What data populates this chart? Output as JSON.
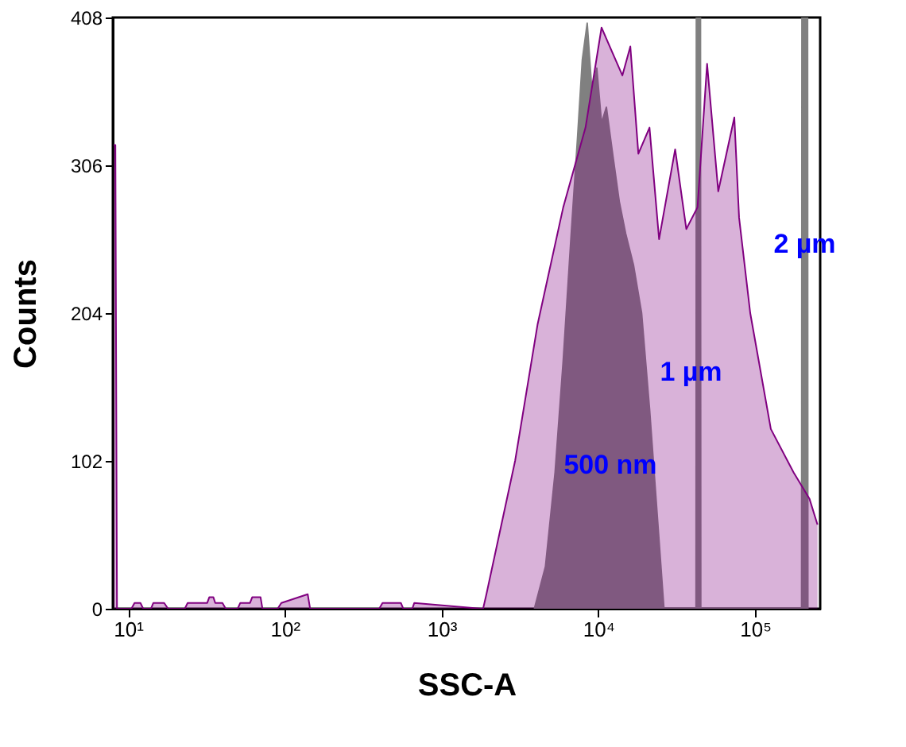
{
  "chart_data": {
    "type": "area",
    "xlabel": "SSC-A",
    "ylabel": "Counts",
    "log": "x",
    "grid": false,
    "xlim": [
      8,
      260000
    ],
    "ylim": [
      0,
      408
    ],
    "xticks": [
      {
        "value": 10,
        "label": "10¹"
      },
      {
        "value": 100,
        "label": "10²"
      },
      {
        "value": 1000,
        "label": "10³"
      },
      {
        "value": 10000,
        "label": "10⁴"
      },
      {
        "value": 100000,
        "label": "10⁵"
      }
    ],
    "yticks": [
      0,
      102,
      204,
      306,
      408
    ],
    "series": [
      {
        "color": "#808080",
        "x": [
          3910,
          4600,
          5300,
          5970,
          6710,
          7360,
          7910,
          8490,
          9100,
          9770,
          10480,
          11250,
          12360,
          13590,
          14920,
          16760,
          18870,
          21200,
          23870,
          26200,
          42000,
          42200,
          44800,
          45000,
          198000,
          199000,
          216000,
          217000
        ],
        "values": [
          0,
          29,
          94,
          171,
          258,
          324,
          379,
          404,
          357,
          373,
          335,
          346,
          313,
          281,
          259,
          237,
          204,
          138,
          61,
          0,
          0,
          408,
          408,
          0,
          0,
          408,
          408,
          0
        ]
      },
      {
        "color": "#800080",
        "x": [
          8.1,
          8.3,
          8.5,
          10.5,
          11,
          12,
          12.5,
          14,
          14.5,
          17,
          18,
          23,
          24,
          32,
          33,
          35,
          36,
          40,
          42,
          50,
          52,
          60,
          62,
          70,
          72,
          90,
          95,
          140,
          145,
          400,
          420,
          550,
          570,
          650,
          670,
          1800,
          1840,
          1932,
          2944,
          4093,
          5970,
          8280,
          10480,
          14230,
          16000,
          18000,
          21200,
          24400,
          30900,
          36400,
          42900,
          49400,
          58200,
          73700,
          79000,
          93100,
          126000,
          176000,
          222000,
          250000
        ],
        "values": [
          320,
          320,
          0,
          0,
          4,
          4,
          0,
          0,
          4,
          4,
          0,
          0,
          4,
          4,
          8,
          8,
          4,
          4,
          0,
          0,
          4,
          4,
          8,
          8,
          0,
          0,
          4,
          10,
          0,
          0,
          4,
          4,
          0,
          0,
          4,
          0,
          0,
          10,
          102,
          196,
          277,
          332,
          401,
          368,
          388,
          314,
          332,
          255,
          317,
          262,
          277,
          376,
          288,
          339,
          270,
          204,
          124,
          94,
          76,
          58
        ]
      }
    ],
    "annotations": [
      "500 nm",
      {
        "text": "1 µm",
        "x": 39000,
        "y": 163
      },
      {
        "text": "2 µm",
        "x": 207000,
        "y": 251
      }
    ]
  }
}
